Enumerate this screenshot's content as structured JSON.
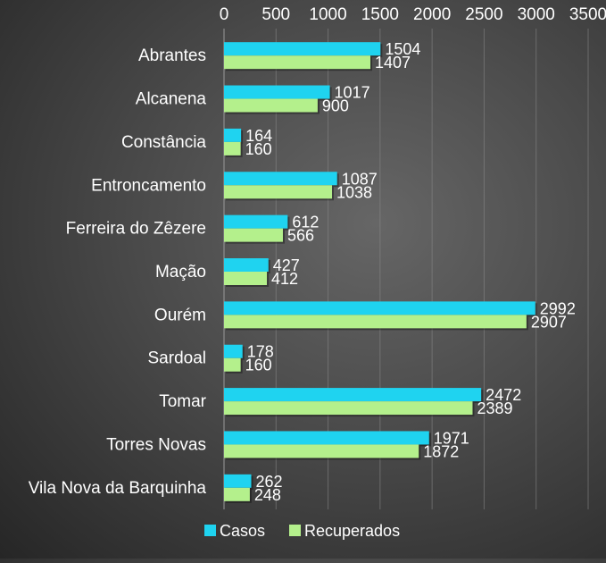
{
  "chart_data": {
    "type": "bar",
    "orientation": "horizontal",
    "title": "",
    "xlabel": "",
    "ylabel": "",
    "xlim": [
      0,
      3500
    ],
    "x_ticks": [
      "0",
      "500",
      "1000",
      "1500",
      "2000",
      "2500",
      "3000",
      "3500"
    ],
    "x_axis_position": "top",
    "grid": true,
    "legend_position": "bottom",
    "categories": [
      "Abrantes",
      "Alcanena",
      "Constância",
      "Entroncamento",
      "Ferreira do Zêzere",
      "Mação",
      "Ourém",
      "Sardoal",
      "Tomar",
      "Torres Novas",
      "Vila Nova da Barquinha"
    ],
    "series": [
      {
        "name": "Casos",
        "color": "#1fd3f0",
        "values": [
          1504,
          1017,
          164,
          1087,
          612,
          427,
          2992,
          178,
          2472,
          1971,
          262
        ]
      },
      {
        "name": "Recuperados",
        "color": "#b4f08c",
        "values": [
          1407,
          900,
          160,
          1038,
          566,
          412,
          2907,
          160,
          2389,
          1872,
          248
        ]
      }
    ]
  }
}
